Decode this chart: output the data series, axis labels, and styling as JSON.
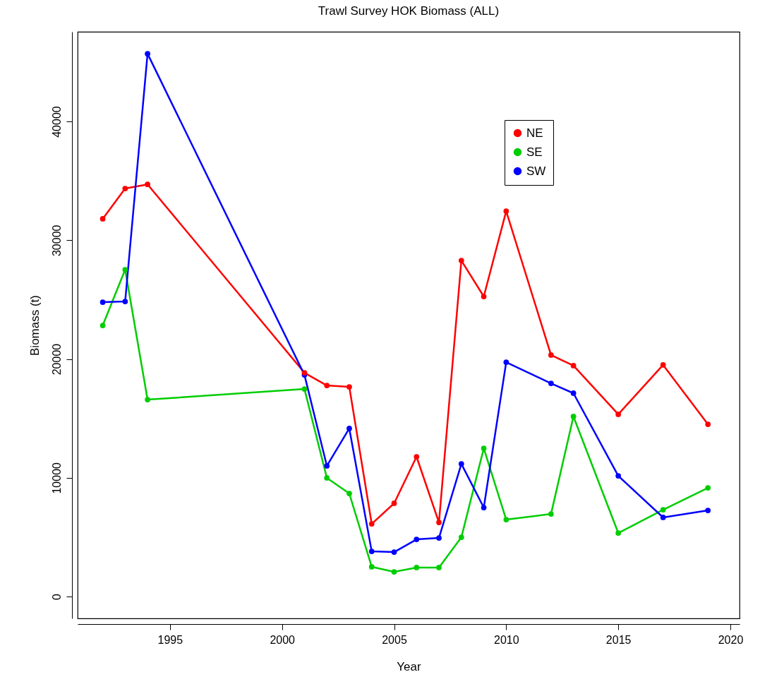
{
  "chart_data": {
    "type": "line",
    "title": "Trawl Survey HOK Biomass (ALL)",
    "xlabel": "Year",
    "ylabel": "Biomass (t)",
    "x": [
      1992,
      1993,
      1994,
      2001,
      2002,
      2003,
      2004,
      2005,
      2006,
      2007,
      2008,
      2009,
      2010,
      2012,
      2013,
      2015,
      2017,
      2019
    ],
    "series": [
      {
        "name": "NE",
        "color": "#ff0000",
        "values": [
          31800,
          34350,
          34700,
          18840,
          17770,
          17650,
          6120,
          7850,
          11770,
          6240,
          28290,
          25260,
          32450,
          20330,
          19440,
          15340,
          19500,
          14500
        ]
      },
      {
        "name": "SE",
        "color": "#00cd00",
        "values": [
          22820,
          27520,
          16580,
          17470,
          9990,
          8680,
          2500,
          2080,
          2440,
          2440,
          4990,
          12480,
          6480,
          6950,
          15160,
          5350,
          7310,
          9150
        ]
      },
      {
        "name": "SW",
        "color": "#0000ff",
        "values": [
          24780,
          24840,
          45700,
          18660,
          11000,
          14150,
          3800,
          3740,
          4810,
          4930,
          11170,
          7490,
          19730,
          17950,
          17120,
          10160,
          6660,
          7250
        ]
      }
    ],
    "xlim": [
      1990.88,
      2020.41
    ],
    "ylim": [
      -1840,
      47550
    ],
    "xticks": [
      1995,
      2000,
      2005,
      2010,
      2015,
      2020
    ],
    "yticks": [
      0,
      10000,
      20000,
      30000,
      40000
    ],
    "grid": false,
    "legend": "top right",
    "marker": "circle",
    "line_style": "solid"
  }
}
